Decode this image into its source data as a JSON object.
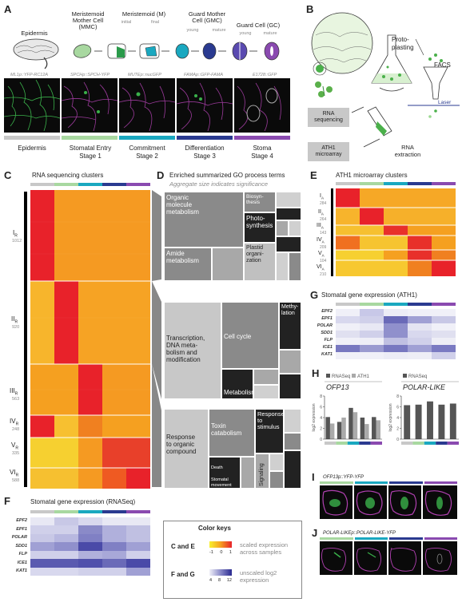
{
  "panels": {
    "A": "A",
    "B": "B",
    "C": "C",
    "D": "D",
    "E": "E",
    "F": "F",
    "G": "G",
    "H": "H",
    "I": "I",
    "J": "J"
  },
  "colors": {
    "gray": "#c8c8c8",
    "green": "#a8d8a0",
    "teal": "#1aa8c0",
    "blue": "#2a3a90",
    "purple": "#8a4ab0"
  },
  "panel_a": {
    "stages": [
      {
        "title": "Epidermis",
        "sub": "",
        "marker": "ML1p::YFP-RC12A"
      },
      {
        "title": "Meristemoid\nMother Cell\n(MMC)",
        "sub": "",
        "marker": "SPCHp::SPCH-YFP"
      },
      {
        "title": "Meristemoid (M)",
        "sub": "initial",
        "marker": ""
      },
      {
        "title": "",
        "sub": "final",
        "marker": "MUTEp::nucGFP"
      },
      {
        "title": "Guard Mother\nCell (GMC)",
        "sub": "young",
        "marker": ""
      },
      {
        "title": "",
        "sub": "mature",
        "marker": "FAMAp::GFP-FAMA"
      },
      {
        "title": "Guard Cell (GC)",
        "sub": "young",
        "marker": ""
      },
      {
        "title": "",
        "sub": "mature",
        "marker": "E1728::GFP"
      }
    ],
    "bottom_labels": [
      {
        "l1": "Epidermis",
        "l2": ""
      },
      {
        "l1": "Stomatal Entry",
        "l2": "Stage 1"
      },
      {
        "l1": "Commitment",
        "l2": "Stage 2"
      },
      {
        "l1": "Differentiation",
        "l2": "Stage 3"
      },
      {
        "l1": "Stoma",
        "l2": "Stage 4"
      }
    ]
  },
  "panel_b": {
    "protoplasting": "Proto-\nplasting",
    "facs": "FACS",
    "laser": "Laser",
    "rna_seq": "RNA\nsequencing",
    "ath1": "ATH1\nmicroarray",
    "rna_extraction": "RNA\nextraction"
  },
  "panel_c": {
    "title": "RNA sequencing clusters",
    "clusters": [
      {
        "name": "I",
        "sub": "R",
        "count": "1012"
      },
      {
        "name": "II",
        "sub": "R",
        "count": "920"
      },
      {
        "name": "III",
        "sub": "R",
        "count": "563"
      },
      {
        "name": "IV",
        "sub": "R",
        "count": "248"
      },
      {
        "name": "V",
        "sub": "R",
        "count": "335"
      },
      {
        "name": "VI",
        "sub": "R",
        "count": "588"
      }
    ]
  },
  "panel_d": {
    "title": "Enriched summarized GO process terms",
    "subtitle": "Aggregate size indicates significance",
    "t1": [
      "Organic\nmolecule\nmetabolism",
      "Biosyn-\nthesis",
      "Photo-\nsynthesis",
      "Amide\nmetabolism",
      "Plastid\norgani-\nzation"
    ],
    "t2": [
      "Transcription,\nDNA meta-\nbolism and\nmodification",
      "Cell cycle",
      "Methy-\nlation",
      "Metabolism"
    ],
    "t3": [
      "Response\nto organic\ncompound",
      "Toxin\ncatabolism",
      "Response\nto\nstimulus",
      "Death",
      "Stomatal\nmovement",
      "Signaling"
    ]
  },
  "panel_e": {
    "title": "ATH1 microarray clusters",
    "clusters": [
      {
        "name": "I",
        "sub": "A",
        "count": "284"
      },
      {
        "name": "II",
        "sub": "A",
        "count": "264"
      },
      {
        "name": "III",
        "sub": "A",
        "count": "143"
      },
      {
        "name": "IV",
        "sub": "A",
        "count": "209"
      },
      {
        "name": "V",
        "sub": "A",
        "count": "104"
      },
      {
        "name": "VI",
        "sub": "A",
        "count": "210"
      }
    ]
  },
  "panel_f": {
    "title": "Stomatal gene expression (RNASeq)",
    "genes": [
      "EPF2",
      "EPF1",
      "POLAR",
      "SDD1",
      "FLP",
      "ICE1",
      "KAT1"
    ]
  },
  "panel_g": {
    "title": "Stomatal gene expression (ATH1)",
    "genes": [
      "EPF2",
      "EPF1",
      "POLAR",
      "SDD1",
      "FLP",
      "ICE1",
      "KAT1"
    ]
  },
  "color_keys": {
    "title": "Color keys",
    "k1_label": "C and E",
    "k1_ticks": [
      "-1",
      "0",
      "1"
    ],
    "k1_desc": "scaled expression\nacross samples",
    "k2_label": "F and G",
    "k2_ticks": [
      "4",
      "8",
      "12"
    ],
    "k2_desc": "unscaled log2\nexpression"
  },
  "chart_data": [
    {
      "type": "bar",
      "title": "OFP13",
      "legend": [
        "RNASeq",
        "ATH1"
      ],
      "ylabel": "log2 expression",
      "ylim": [
        0,
        8
      ],
      "yticks": [
        "0",
        "2",
        "4",
        "6",
        "8"
      ],
      "series": [
        {
          "name": "RNASeq",
          "values": [
            4.1,
            3.2,
            5.8,
            4.0,
            4.1
          ]
        },
        {
          "name": "ATH1",
          "values": [
            2.9,
            4.0,
            5.0,
            2.8,
            3.5
          ]
        }
      ]
    },
    {
      "type": "bar",
      "title": "POLAR-LIKE",
      "legend": [
        "RNASeq"
      ],
      "ylabel": "log2 expression",
      "ylim": [
        0,
        8
      ],
      "yticks": [
        "0",
        "2",
        "4",
        "6",
        "8"
      ],
      "series": [
        {
          "name": "RNASeq",
          "values": [
            6.3,
            6.4,
            7.0,
            6.4,
            6.6
          ]
        }
      ]
    }
  ],
  "panel_i": {
    "label": "OFP13p::YFP-YFP"
  },
  "panel_j": {
    "label": "POLAR-LIKEp::POLAR-LIKE-YFP"
  }
}
